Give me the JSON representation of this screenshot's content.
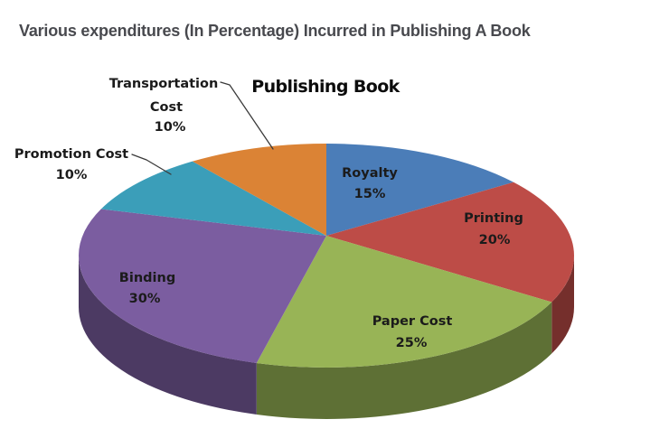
{
  "page": {
    "background": "#ffffff"
  },
  "header": {
    "title": "Various expenditures (In Percentage) Incurred in Publishing A Book",
    "color": "#48494e"
  },
  "chart_data": {
    "type": "pie",
    "style": "3d",
    "title": "Publishing Book",
    "unit": "percent",
    "start_angle_deg": -90,
    "direction": "clockwise",
    "legend": "none",
    "slices": [
      {
        "label": "Royalty",
        "value": 15,
        "pct_label": "15%",
        "color": "#4b7db8",
        "label_style": "inside"
      },
      {
        "label": "Printing",
        "value": 20,
        "pct_label": "20%",
        "color": "#bd4c47",
        "label_style": "inside"
      },
      {
        "label": "Paper Cost",
        "value": 25,
        "pct_label": "25%",
        "color": "#98b456",
        "label_style": "inside"
      },
      {
        "label": "Binding",
        "value": 30,
        "pct_label": "30%",
        "color": "#7b5da0",
        "label_style": "inside"
      },
      {
        "label": "Promotion Cost",
        "value": 10,
        "pct_label": "10%",
        "color": "#3b9eb9",
        "label_style": "callout",
        "label_lines": [
          "Promotion Cost"
        ]
      },
      {
        "label": "Transportation Cost",
        "value": 10,
        "pct_label": "10%",
        "color": "#db8335",
        "label_style": "callout",
        "label_lines": [
          "Transportation",
          "Cost"
        ]
      }
    ]
  }
}
